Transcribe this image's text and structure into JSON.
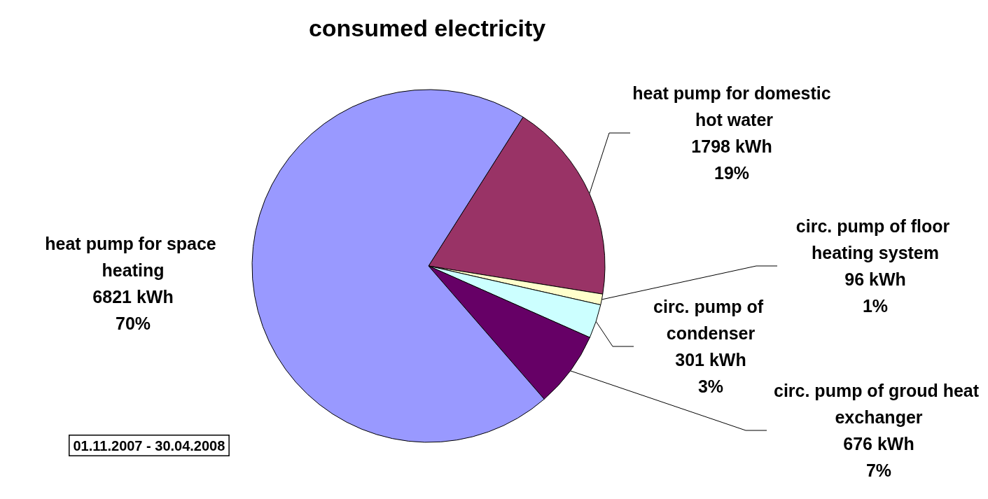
{
  "chart_data": {
    "type": "pie",
    "title": "consumed electricity",
    "categories": [
      "heat pump for domestic hot water",
      "circ. pump of floor heating system",
      "circ. pump of condenser",
      "circ. pump of groud heat exchanger",
      "heat pump for space heating"
    ],
    "values": [
      1798,
      96,
      301,
      676,
      6821
    ],
    "colors": [
      "#993366",
      "#ffffcc",
      "#ccffff",
      "#660066",
      "#9999ff"
    ],
    "value_labels": [
      "1798 kWh\n19%",
      "96 kWh\n1%",
      "301 kWh\n3%",
      "676 kWh\n7%",
      "6821 kWh\n70%"
    ],
    "annotations": [
      "01.11.2007 - 30.04.2008"
    ],
    "legend": false
  }
}
